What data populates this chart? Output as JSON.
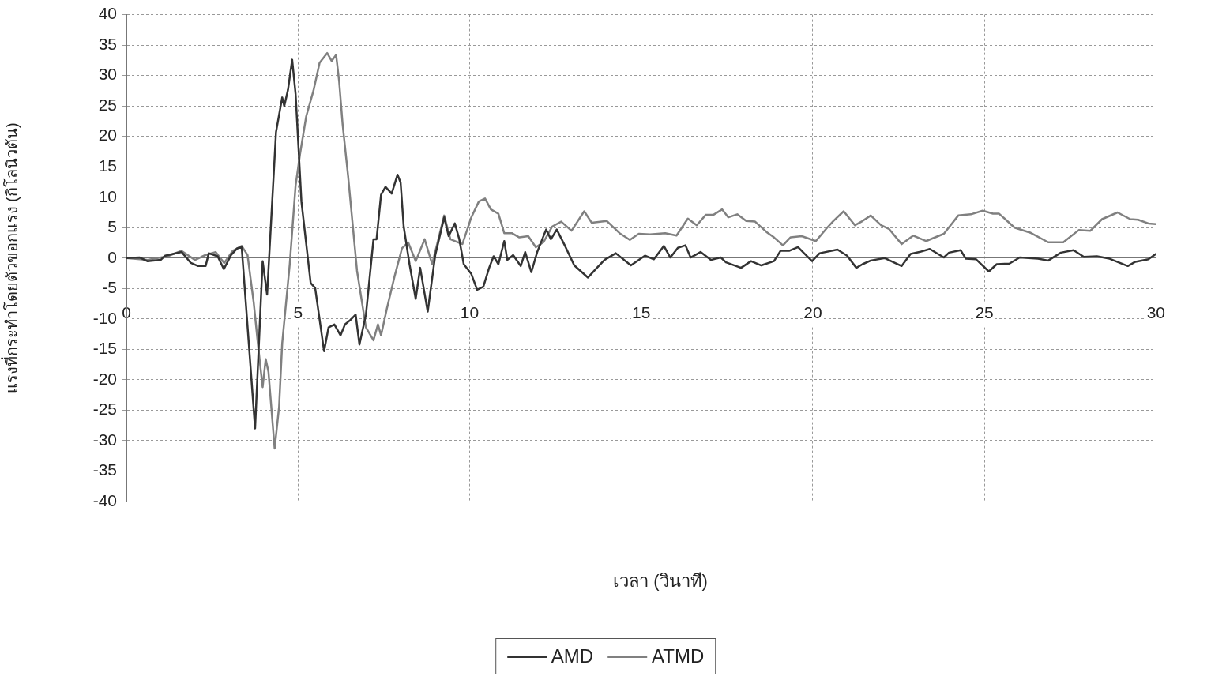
{
  "chart_data": {
    "type": "line",
    "xlabel": "เวลา (วินาที)",
    "ylabel": "แรงที่กระทำโดยตัวขอกแรง (กิโลนิวตัน)",
    "xlim": [
      0,
      30
    ],
    "xticks": [
      0,
      5,
      10,
      15,
      20,
      25,
      30
    ],
    "ylim": [
      -40,
      40
    ],
    "yticks": [
      -40,
      -35,
      -30,
      -25,
      -20,
      -15,
      -10,
      -5,
      0,
      5,
      10,
      15,
      20,
      25,
      30,
      35,
      40
    ],
    "grid": true,
    "legend": "bottom",
    "line_style": "solid",
    "marker": "none",
    "series": [
      {
        "name": "AMD",
        "color": "#333333",
        "x": [
          0,
          0.39,
          0.61,
          1.0,
          1.13,
          1.61,
          1.88,
          2.09,
          2.31,
          2.4,
          2.66,
          2.84,
          3.05,
          3.23,
          3.36,
          3.75,
          3.97,
          4.1,
          4.36,
          4.54,
          4.6,
          4.71,
          4.83,
          4.93,
          5.1,
          5.37,
          5.5,
          5.76,
          5.89,
          6.06,
          6.24,
          6.37,
          6.54,
          6.68,
          6.79,
          6.98,
          7.2,
          7.29,
          7.42,
          7.55,
          7.73,
          7.9,
          7.99,
          8.08,
          8.25,
          8.43,
          8.56,
          8.78,
          9.0,
          9.26,
          9.39,
          9.57,
          9.7,
          9.83,
          10.05,
          10.22,
          10.4,
          10.57,
          10.7,
          10.84,
          11.01,
          11.1,
          11.27,
          11.49,
          11.62,
          11.8,
          11.97,
          12.23,
          12.37,
          12.54,
          12.79,
          13.05,
          13.45,
          13.71,
          13.93,
          14.26,
          14.7,
          15.11,
          15.37,
          15.66,
          15.85,
          16.07,
          16.29,
          16.44,
          16.73,
          17.03,
          17.32,
          17.47,
          17.91,
          18.2,
          18.5,
          18.87,
          19.06,
          19.31,
          19.57,
          19.98,
          20.2,
          20.72,
          21.0,
          21.27,
          21.45,
          21.69,
          22.1,
          22.59,
          22.85,
          23.11,
          23.41,
          23.82,
          23.97,
          24.31,
          24.46,
          24.76,
          25.13,
          25.36,
          25.73,
          26.03,
          26.56,
          26.86,
          27.23,
          27.6,
          27.9,
          28.28,
          28.65,
          29.18,
          29.4,
          29.78,
          30
        ],
        "values": [
          0,
          0.1,
          -0.5,
          -0.3,
          0.4,
          1,
          -0.8,
          -1.3,
          -1.3,
          0.8,
          0.3,
          -1.8,
          0.5,
          1.6,
          1.8,
          -28,
          -0.5,
          -6,
          20.7,
          26.4,
          25,
          27.7,
          32.6,
          27,
          9.3,
          -4.1,
          -4.9,
          -15.3,
          -11.4,
          -10.9,
          -12.7,
          -10.9,
          -10.1,
          -9.3,
          -14.2,
          -9.3,
          3.1,
          3.1,
          10.4,
          11.7,
          10.6,
          13.7,
          12.4,
          5.2,
          -1,
          -6.7,
          -1.6,
          -8.8,
          0.5,
          6.7,
          3.6,
          5.7,
          3.1,
          -1,
          -2.6,
          -5.2,
          -4.7,
          -1.6,
          0.3,
          -1,
          2.8,
          -0.3,
          0.5,
          -1.3,
          1,
          -2.3,
          1,
          4.7,
          3.1,
          4.7,
          1.9,
          -1.2,
          -3.2,
          -1.6,
          -0.3,
          0.8,
          -1.2,
          0.4,
          -0.2,
          2,
          0.1,
          1.7,
          2.1,
          0.1,
          1,
          -0.3,
          0.1,
          -0.7,
          -1.6,
          -0.5,
          -1.2,
          -0.5,
          1.2,
          1.2,
          1.8,
          -0.5,
          0.8,
          1.4,
          0.4,
          -1.6,
          -1,
          -0.4,
          0,
          -1.3,
          0.7,
          1,
          1.5,
          0.1,
          0.9,
          1.3,
          -0.1,
          -0.2,
          -2.2,
          -1,
          -0.9,
          0.1,
          -0.1,
          -0.4,
          0.9,
          1.3,
          0.2,
          0.3,
          -0.1,
          -1.3,
          -0.6,
          -0.2,
          0.7
        ]
      },
      {
        "name": "ATMD",
        "color": "#808080",
        "x": [
          0,
          0.6,
          1.2,
          1.6,
          2.0,
          2.3,
          2.6,
          2.85,
          3.1,
          3.36,
          3.53,
          3.71,
          3.84,
          3.97,
          4.06,
          4.14,
          4.32,
          4.45,
          4.54,
          4.76,
          4.93,
          5.06,
          5.24,
          5.45,
          5.63,
          5.85,
          5.98,
          6.11,
          6.2,
          6.3,
          6.46,
          6.72,
          6.98,
          7.2,
          7.33,
          7.42,
          7.59,
          7.81,
          8.03,
          8.21,
          8.43,
          8.69,
          8.91,
          9.26,
          9.44,
          9.79,
          10.05,
          10.27,
          10.45,
          10.62,
          10.84,
          11.01,
          11.23,
          11.45,
          11.71,
          11.93,
          12.15,
          12.41,
          12.67,
          12.97,
          13.34,
          13.56,
          14.0,
          14.37,
          14.67,
          14.93,
          15.26,
          15.7,
          16.03,
          16.36,
          16.62,
          16.88,
          17.1,
          17.36,
          17.54,
          17.8,
          18.06,
          18.32,
          18.65,
          18.87,
          19.13,
          19.35,
          19.68,
          20.09,
          20.42,
          20.6,
          20.9,
          21.23,
          21.45,
          21.69,
          21.99,
          22.22,
          22.59,
          22.93,
          23.3,
          23.82,
          24.24,
          24.61,
          24.95,
          25.25,
          25.43,
          25.88,
          26.33,
          26.86,
          27.3,
          27.75,
          28.09,
          28.43,
          28.88,
          29.25,
          29.48,
          29.78,
          30
        ],
        "values": [
          0,
          -0.3,
          0.3,
          1.2,
          -0.3,
          0.5,
          1,
          -0.8,
          1.2,
          2,
          0.5,
          -7.3,
          -14.5,
          -21.2,
          -16.6,
          -18.7,
          -31.3,
          -24.4,
          -14,
          -1,
          11.9,
          17.1,
          23.3,
          27.5,
          32.1,
          33.7,
          32.4,
          33.4,
          29,
          22,
          13.5,
          -2.1,
          -11.4,
          -13.5,
          -10.9,
          -12.7,
          -8.3,
          -3.1,
          1.6,
          2.6,
          -0.5,
          3.1,
          -1,
          7,
          3.1,
          2.3,
          6.7,
          9.3,
          9.8,
          8,
          7.3,
          4.1,
          4.1,
          3.4,
          3.6,
          1.8,
          2.6,
          5.2,
          6,
          4.5,
          7.7,
          5.8,
          6.1,
          4.1,
          3,
          4,
          3.9,
          4.1,
          3.7,
          6.5,
          5.4,
          7.1,
          7.1,
          8,
          6.7,
          7.2,
          6.1,
          6,
          4.3,
          3.4,
          2.1,
          3.4,
          3.6,
          2.8,
          5,
          6.1,
          7.7,
          5.4,
          6.1,
          7,
          5.4,
          4.8,
          2.3,
          3.7,
          2.8,
          4,
          7,
          7.2,
          7.8,
          7.3,
          7.3,
          5,
          4.2,
          2.6,
          2.6,
          4.6,
          4.5,
          6.4,
          7.5,
          6.4,
          6.3,
          5.7,
          5.6
        ]
      }
    ]
  }
}
